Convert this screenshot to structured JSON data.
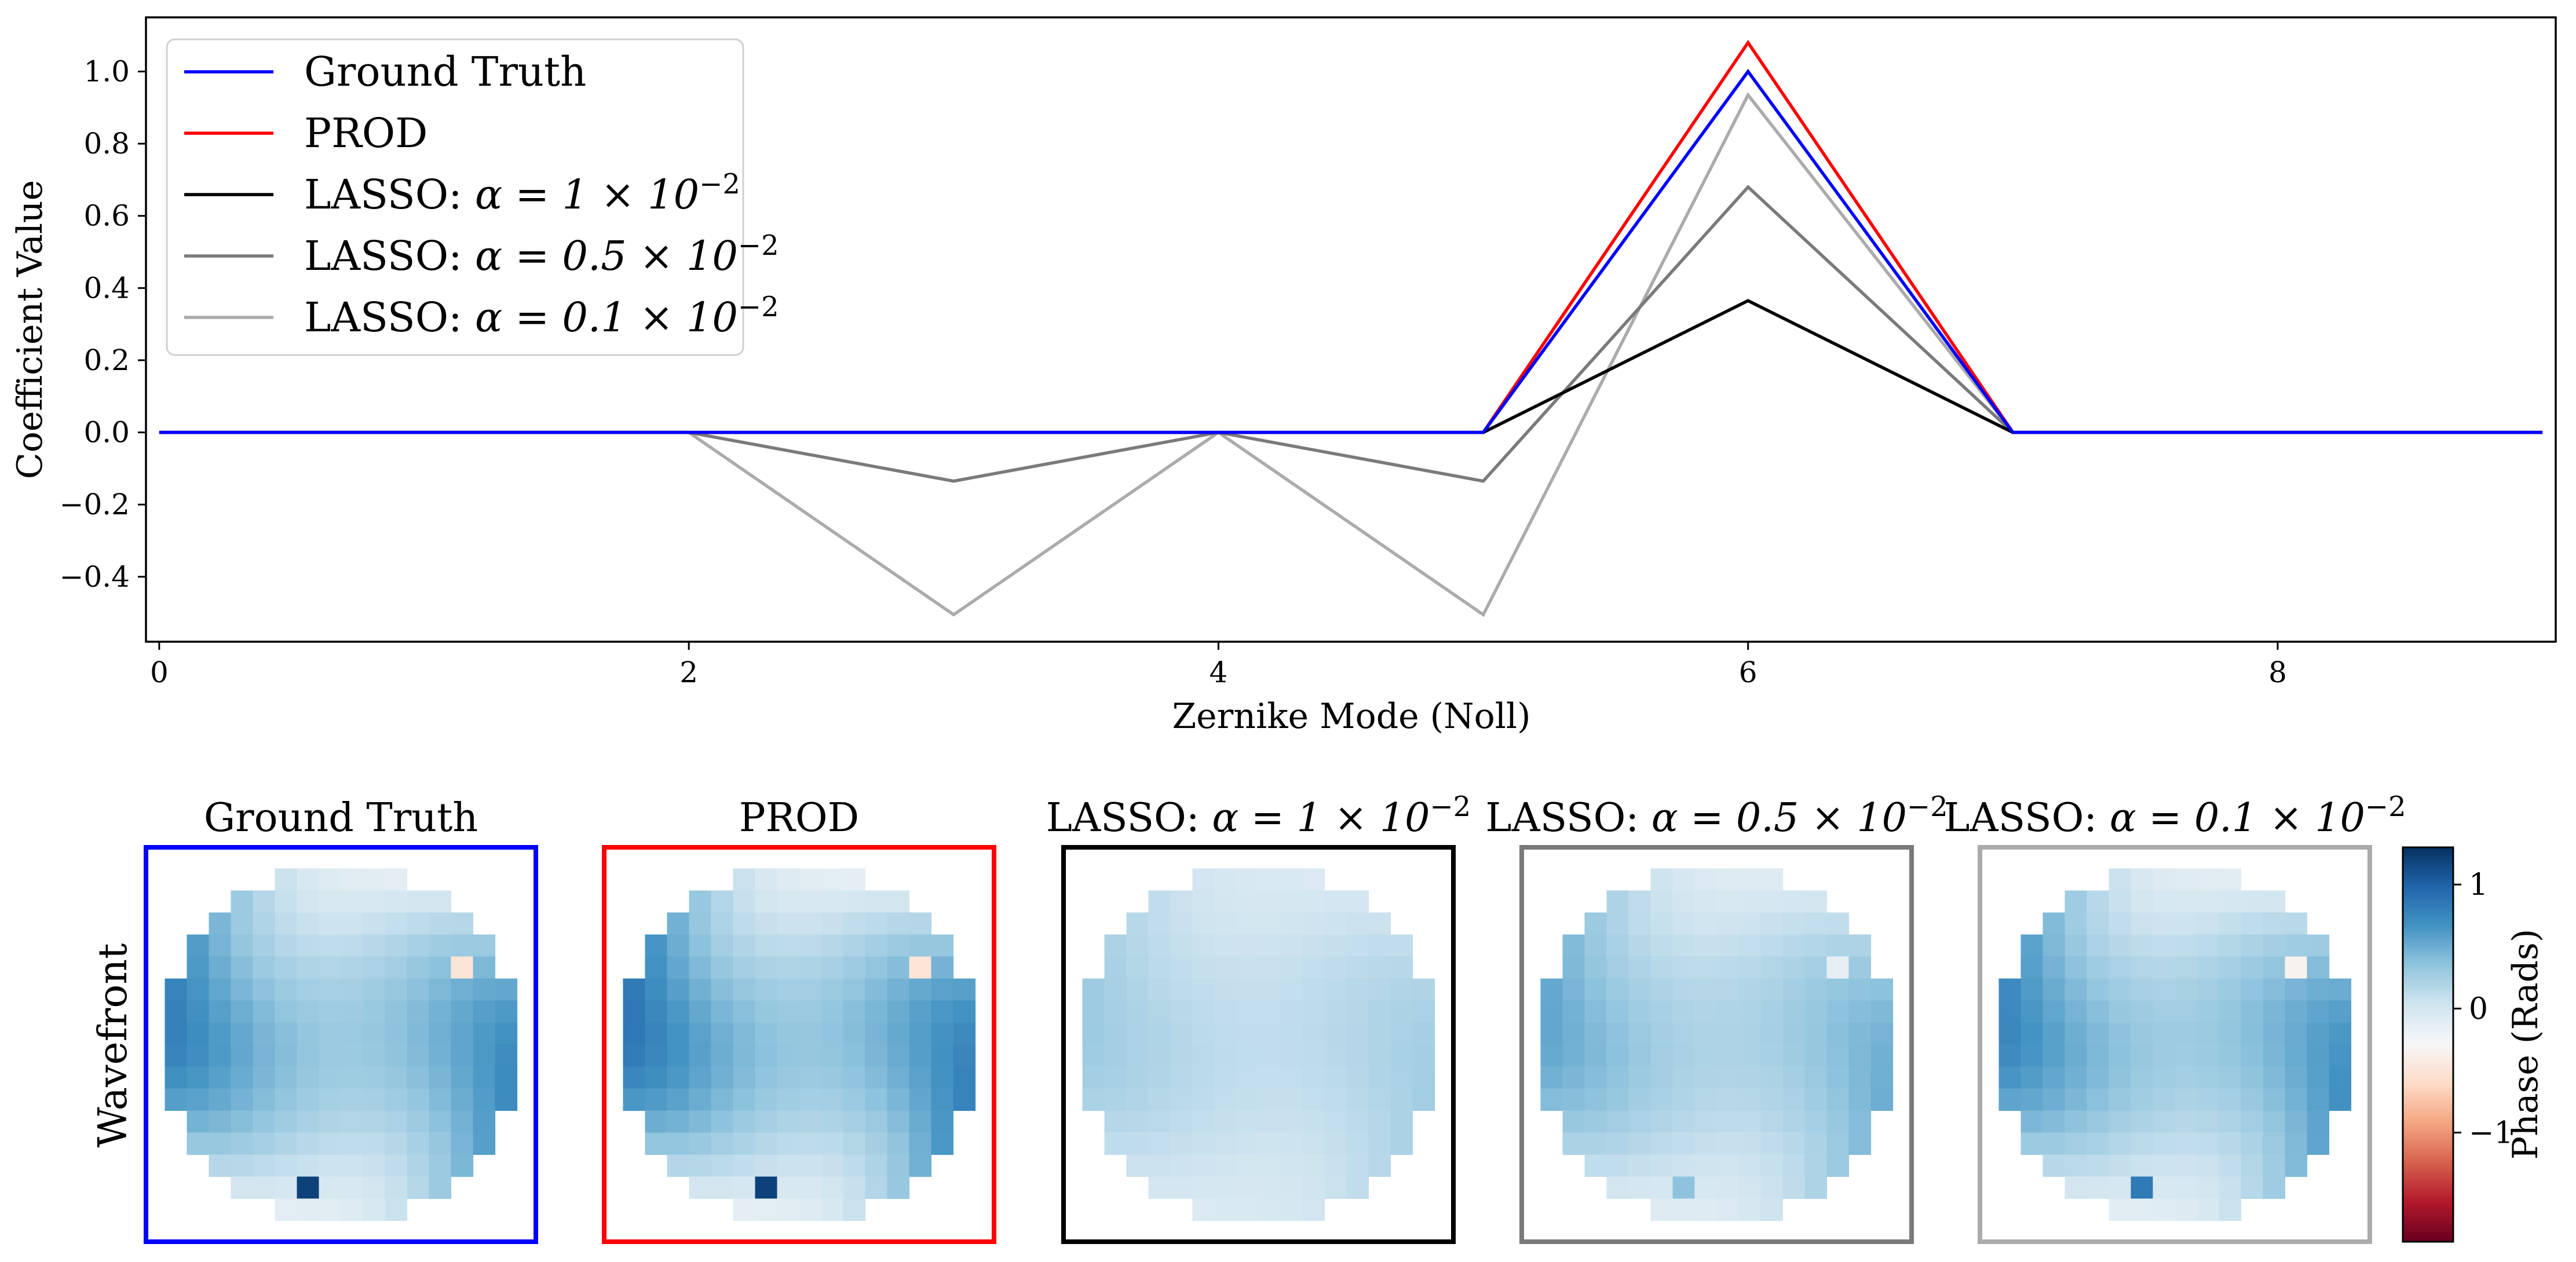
{
  "chart_data": [
    {
      "type": "line",
      "xlabel": "Zernike Mode (Noll)",
      "ylabel": "Coefficient Value",
      "xlim": [
        -0.05,
        9.05
      ],
      "ylim": [
        -0.58,
        1.15
      ],
      "xticks": [
        0,
        2,
        4,
        6,
        8
      ],
      "xtick_labels": [
        "0",
        "2",
        "4",
        "6",
        "8"
      ],
      "yticks": [
        -0.4,
        -0.2,
        0.0,
        0.2,
        0.4,
        0.6,
        0.8,
        1.0
      ],
      "ytick_labels": [
        "−0.4",
        "−0.2",
        "0.0",
        "0.2",
        "0.4",
        "0.6",
        "0.8",
        "1.0"
      ],
      "legend_position": "top-left",
      "x": [
        0,
        1,
        2,
        3,
        4,
        5,
        6,
        7,
        8,
        9
      ],
      "series": [
        {
          "name": "Ground Truth",
          "label_prefix": "Ground Truth",
          "math": "",
          "color": "#0000ff",
          "values": [
            0,
            0,
            0,
            0,
            0,
            0,
            1.0,
            0,
            0,
            0
          ]
        },
        {
          "name": "PROD",
          "label_prefix": "PROD",
          "math": "",
          "color": "#ff0000",
          "values": [
            0,
            0,
            0,
            0,
            0,
            0,
            1.08,
            0,
            0,
            0
          ]
        },
        {
          "name": "LASSO: α = 1 × 10^-2",
          "label_prefix": "LASSO: ",
          "math": "α = 1 × 10",
          "exp": "−2",
          "color": "#000000",
          "values": [
            0,
            0,
            0,
            0,
            0,
            0,
            0.365,
            0,
            0,
            0
          ]
        },
        {
          "name": "LASSO: α = 0.5 × 10^-2",
          "label_prefix": "LASSO: ",
          "math": "α = 0.5 × 10",
          "exp": "−2",
          "color": "#7a7a7a",
          "values": [
            0,
            0,
            0,
            -0.135,
            0,
            -0.135,
            0.68,
            0,
            0,
            0
          ]
        },
        {
          "name": "LASSO: α = 0.1 × 10^-2",
          "label_prefix": "LASSO: ",
          "math": "α = 0.1 × 10",
          "exp": "−2",
          "color": "#ababab",
          "values": [
            0,
            0,
            0,
            -0.505,
            0,
            -0.505,
            0.935,
            0,
            0,
            0
          ]
        }
      ],
      "draw_order": [
        4,
        3,
        2,
        1,
        0
      ]
    },
    {
      "type": "heatmap",
      "row_label": "Wavefront",
      "colorbar_label": "Phase (Rads)",
      "colorbar_ticks": [
        1,
        0,
        -1
      ],
      "colorbar_tick_labels": [
        "1",
        "0",
        "−1"
      ],
      "vmin": -1.88,
      "vmax": 1.3,
      "colormap": "RdBu",
      "grid_size": 16,
      "pupil_radius_cells": 8.0,
      "panels": [
        {
          "title_prefix": "Ground Truth",
          "math": "",
          "frame_color": "#0000ff",
          "scale": 1.0,
          "defects": 1.0
        },
        {
          "title_prefix": "PROD",
          "math": "",
          "frame_color": "#ff0000",
          "scale": 1.08,
          "defects": 1.0
        },
        {
          "title_prefix": "LASSO: ",
          "math": "α = 1 × 10",
          "exp": "−2",
          "frame_color": "#000000",
          "scale": 0.365,
          "defects": 0.0
        },
        {
          "title_prefix": "LASSO: ",
          "math": "α = 0.5 × 10",
          "exp": "−2",
          "frame_color": "#7a7a7a",
          "scale": 0.68,
          "defects": 0.3
        },
        {
          "title_prefix": "LASSO: ",
          "math": "α = 0.1 × 10",
          "exp": "−2",
          "frame_color": "#ababab",
          "scale": 0.935,
          "defects": 0.7
        }
      ]
    }
  ]
}
